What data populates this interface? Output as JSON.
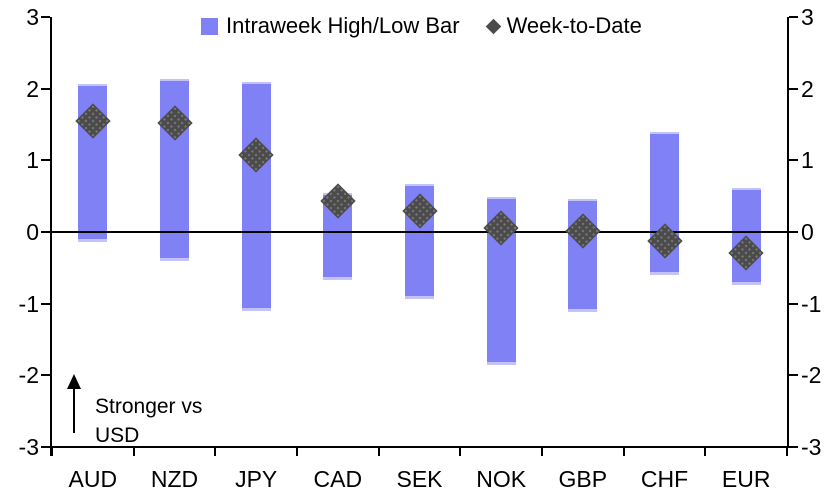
{
  "chart_data": {
    "type": "bar",
    "title": "",
    "xlabel": "",
    "ylabel": "",
    "categories": [
      "AUD",
      "NZD",
      "JPY",
      "CAD",
      "SEK",
      "NOK",
      "GBP",
      "CHF",
      "EUR"
    ],
    "series": [
      {
        "name": "Intraweek High/Low Bar",
        "type": "range_bar",
        "high": [
          2.07,
          2.13,
          2.09,
          0.55,
          0.67,
          0.49,
          0.46,
          1.39,
          0.62
        ],
        "low": [
          -0.14,
          -0.4,
          -1.1,
          -0.67,
          -0.93,
          -1.85,
          -1.12,
          -0.6,
          -0.74
        ]
      },
      {
        "name": "Week-to-Date",
        "type": "scatter",
        "marker": "diamond",
        "values": [
          1.55,
          1.52,
          1.07,
          0.43,
          0.29,
          0.05,
          0.02,
          -0.13,
          -0.29
        ]
      }
    ],
    "ylim": [
      -3,
      3
    ],
    "yticks": [
      3,
      2,
      1,
      0,
      -1,
      -2,
      -3
    ],
    "y_axis_mirrored_right": true,
    "grid": false,
    "zero_line": true,
    "legend_position": "top",
    "annotation": {
      "line1": "Stronger vs",
      "line2": "USD",
      "arrow": "up"
    }
  },
  "colors": {
    "bar_fill": "#8181F6",
    "bar_edge_light": "#C3C3FA",
    "marker_fill": "#4B4B4B",
    "marker_dot": "#7A7A7A",
    "axis": "#000000",
    "text": "#000000"
  }
}
